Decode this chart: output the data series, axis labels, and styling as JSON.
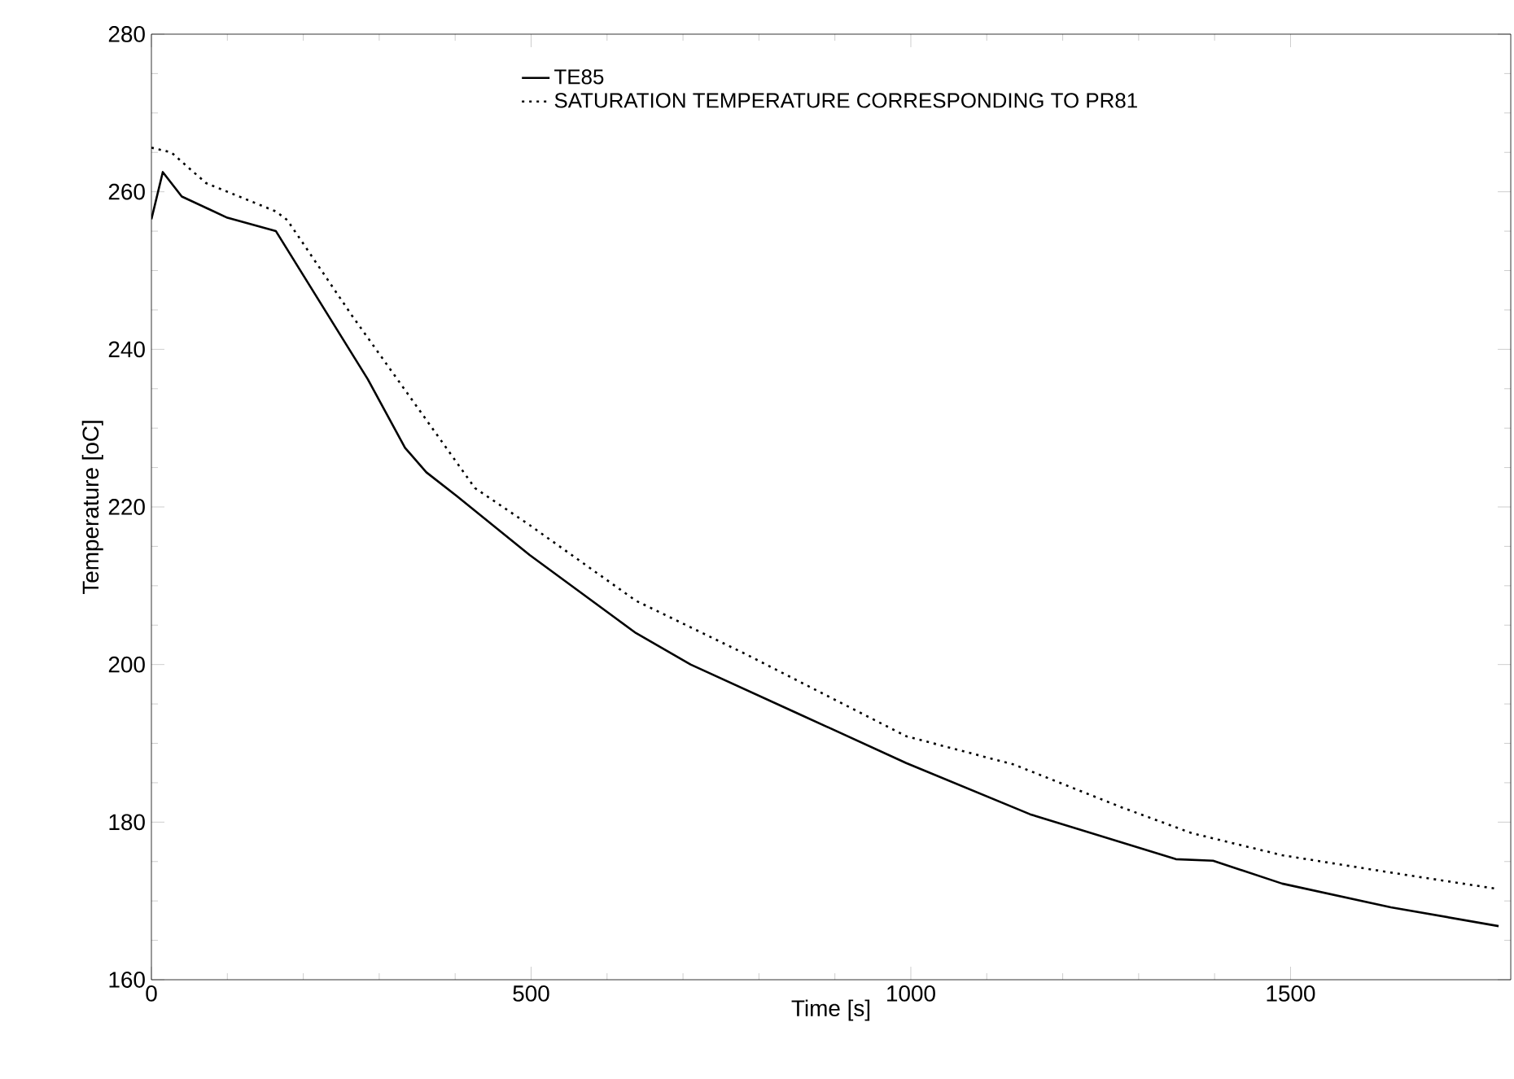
{
  "chart_data": {
    "type": "line",
    "xlabel": "Time [s]",
    "ylabel": "Temperature [oC]",
    "xlim": [
      0,
      1790
    ],
    "xticks": [
      0,
      500,
      1000,
      1500
    ],
    "ylim": [
      160,
      280
    ],
    "yticks": [
      160,
      180,
      200,
      220,
      240,
      260,
      280
    ],
    "legend": "top",
    "grid": false,
    "marker": "none",
    "series": [
      {
        "name": "TE85",
        "color": "#000000",
        "line_style": "solid",
        "x": [
          0,
          15,
          40,
          100,
          164,
          285,
          334,
          362,
          402,
          498,
          638,
          710,
          851,
          994,
          1157,
          1349,
          1398,
          1489,
          1632,
          1774
        ],
        "values": [
          256.5,
          262.5,
          259.4,
          256.7,
          255,
          236.2,
          227.5,
          224.4,
          221.4,
          213.9,
          204.0,
          200,
          193.8,
          187.5,
          181.0,
          175.3,
          175.1,
          172.2,
          169.2,
          166.8
        ]
      },
      {
        "name": "SATURATION TEMPERATURE CORRESPONDING TO PR81",
        "color": "#000000",
        "line_style": "dotted",
        "x": [
          0,
          26,
          72,
          164,
          179,
          264,
          426,
          498,
          638,
          781,
          994,
          1136,
          1277,
          1370,
          1489,
          1632,
          1774
        ],
        "values": [
          265.6,
          265,
          261.1,
          257.5,
          256.4,
          244.3,
          222.4,
          217.7,
          208.1,
          201.4,
          190.9,
          187.3,
          181.9,
          178.6,
          175.8,
          173.6,
          171.5
        ]
      }
    ]
  }
}
